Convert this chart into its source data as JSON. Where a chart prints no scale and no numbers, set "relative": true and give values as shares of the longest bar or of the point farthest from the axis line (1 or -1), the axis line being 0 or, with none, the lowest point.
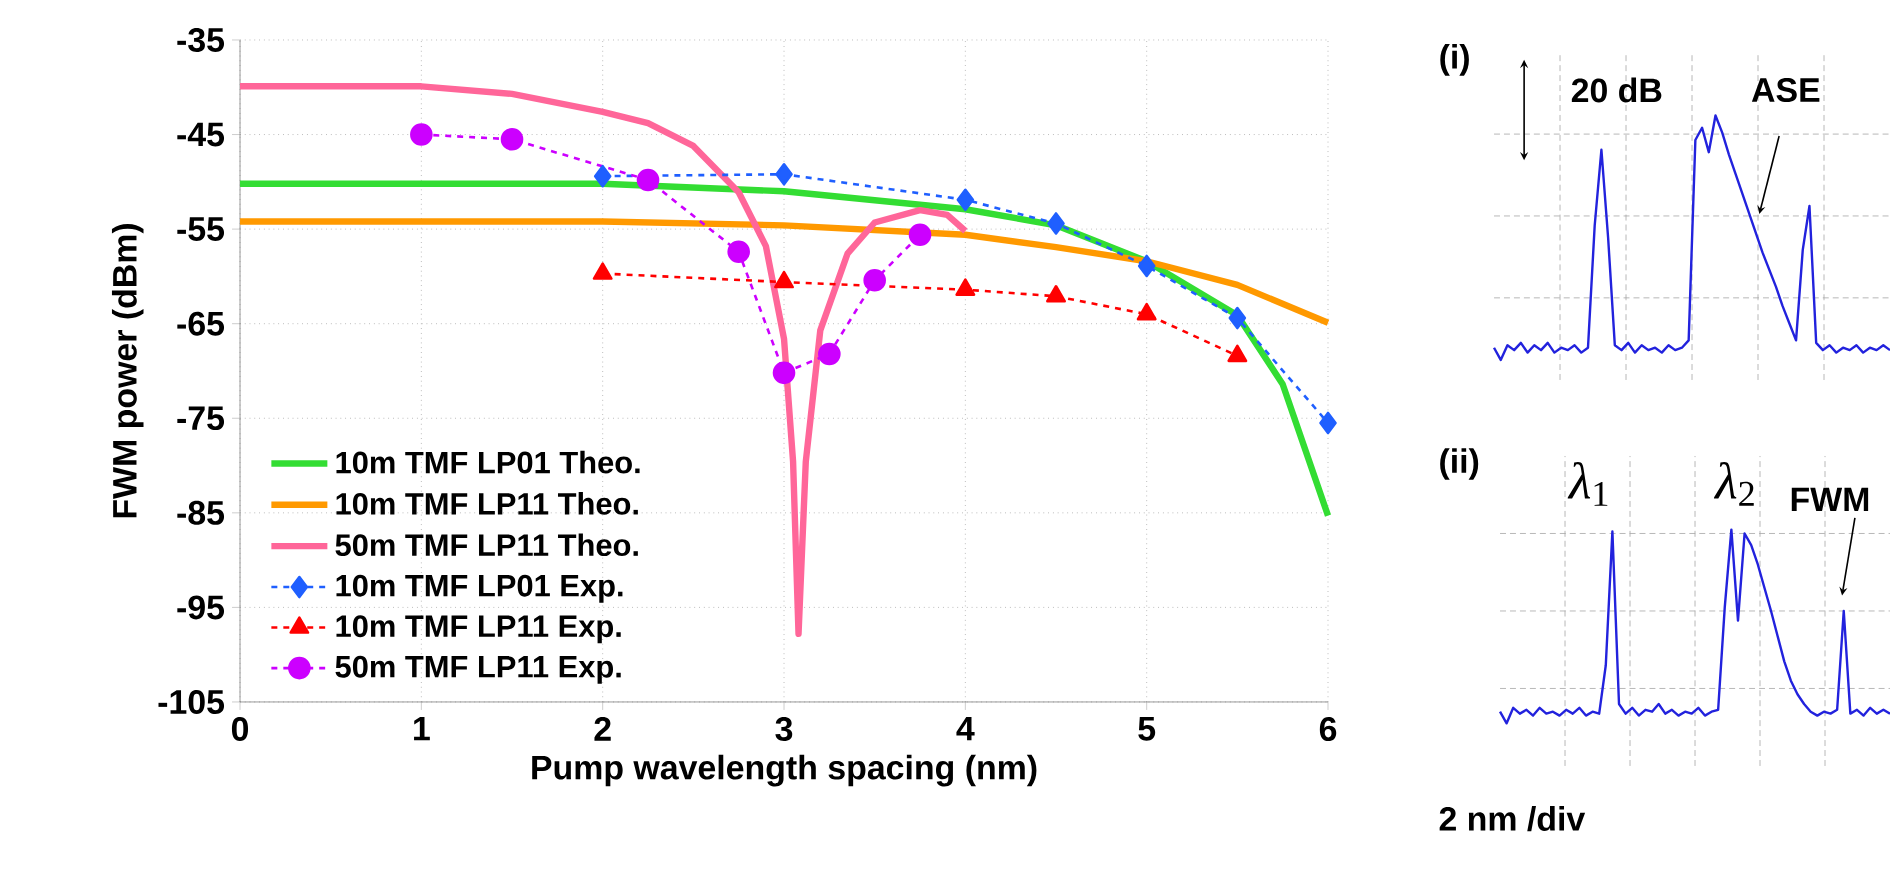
{
  "chart_data": [
    {
      "type": "line",
      "xlabel": "Pump wavelength spacing (nm)",
      "ylabel": "FWM power (dBm)",
      "xlim": [
        0,
        6
      ],
      "ylim": [
        -105,
        -35
      ],
      "xticks": [
        0,
        1,
        2,
        3,
        4,
        5,
        6
      ],
      "yticks": [
        -105,
        -95,
        -85,
        -75,
        -65,
        -55,
        -45,
        -35
      ],
      "grid": true,
      "legend": "bottom left",
      "series": [
        {
          "name": "10m TMF LP01 Theo.",
          "color": "#33dd33",
          "marker": "none",
          "line_style": "solid",
          "x": [
            0,
            1,
            2,
            3,
            4,
            4.5,
            5,
            5.5,
            5.75,
            6
          ],
          "values": [
            -50.2,
            -50.2,
            -50.2,
            -51,
            -52.9,
            -54.6,
            -58.4,
            -64.1,
            -71.4,
            -85.3
          ]
        },
        {
          "name": "10m TMF LP11 Theo.",
          "color": "#ff9900",
          "marker": "none",
          "line_style": "solid",
          "x": [
            0,
            1,
            2,
            3,
            4,
            4.5,
            5,
            5.5,
            6
          ],
          "values": [
            -54.2,
            -54.2,
            -54.2,
            -54.6,
            -55.6,
            -56.9,
            -58.4,
            -60.9,
            -64.9
          ]
        },
        {
          "name": "50m TMF LP11 Theo.",
          "color": "#ff6699",
          "marker": "none",
          "line_style": "solid",
          "x": [
            0,
            1,
            1.5,
            2,
            2.25,
            2.5,
            2.75,
            2.9,
            3.0,
            3.05,
            3.08,
            3.12,
            3.2,
            3.35,
            3.5,
            3.75,
            3.9,
            4.0
          ],
          "values": [
            -39.9,
            -39.9,
            -40.7,
            -42.6,
            -43.8,
            -46.2,
            -51.1,
            -56.8,
            -66.6,
            -79.6,
            -97.8,
            -79.6,
            -65.7,
            -57.6,
            -54.3,
            -53,
            -53.5,
            -55.2
          ]
        },
        {
          "name": "10m TMF LP01 Exp.",
          "color": "#1f5fff",
          "marker": "diamond",
          "line_style": "dashed",
          "x": [
            2,
            3,
            4,
            4.5,
            5,
            5.5,
            6
          ],
          "values": [
            -49.4,
            -49.2,
            -51.9,
            -54.4,
            -58.9,
            -64.4,
            -75.5
          ]
        },
        {
          "name": "10m TMF LP11 Exp.",
          "color": "#ff0000",
          "marker": "triangle",
          "line_style": "dashed",
          "x": [
            2,
            3,
            4,
            4.5,
            5,
            5.5
          ],
          "values": [
            -59.7,
            -60.6,
            -61.4,
            -62.1,
            -64,
            -68.4
          ]
        },
        {
          "name": "50m TMF LP11 Exp.",
          "color": "#cc00ff",
          "marker": "circle",
          "line_style": "dashed",
          "x": [
            1,
            1.5,
            2.25,
            2.75,
            3,
            3.25,
            3.5,
            3.75
          ],
          "values": [
            -45,
            -45.5,
            -49.8,
            -57.4,
            -70.2,
            -68.2,
            -60.4,
            -55.6
          ]
        }
      ]
    },
    {
      "type": "line",
      "relative": true,
      "grid": true,
      "annotations": [
        "(i)",
        "20 dB",
        "ASE"
      ],
      "categories": [
        null,
        null,
        null,
        null,
        null,
        null,
        null,
        null,
        null,
        null,
        null,
        null,
        null,
        null,
        null,
        null,
        null,
        null,
        null,
        null,
        null,
        null,
        null,
        null,
        null,
        null,
        null,
        null,
        null,
        null,
        null,
        null,
        null,
        null,
        null,
        null,
        null,
        null,
        null,
        null,
        null,
        null,
        null,
        null,
        null,
        null,
        null,
        null,
        null,
        null,
        null,
        null,
        null,
        null,
        null,
        null,
        null,
        null,
        null,
        null
      ],
      "series": [
        {
          "color": "#2222dd",
          "values": [
            0.05,
            0,
            0.06,
            0.04,
            0.07,
            0.03,
            0.06,
            0.04,
            0.07,
            0.03,
            0.05,
            0.04,
            0.06,
            0.03,
            0.05,
            0.55,
            0.86,
            0.5,
            0.06,
            0.04,
            0.07,
            0.03,
            0.06,
            0.04,
            0.05,
            0.03,
            0.06,
            0.04,
            0.05,
            0.08,
            0.9,
            0.95,
            0.85,
            1,
            0.93,
            0.84,
            0.76,
            0.68,
            0.6,
            0.52,
            0.44,
            0.37,
            0.3,
            0.22,
            0.15,
            0.08,
            0.45,
            0.63,
            0.07,
            0.04,
            0.06,
            0.03,
            0.05,
            0.04,
            0.06,
            0.03,
            0.05,
            0.04,
            0.06,
            0.04
          ]
        }
      ]
    },
    {
      "type": "line",
      "relative": true,
      "grid": true,
      "annotations": [
        "(ii)",
        "*λ*$_{1}$",
        "*λ*$_{2}$",
        "FWM",
        "2 nm /div"
      ],
      "categories": [
        null,
        null,
        null,
        null,
        null,
        null,
        null,
        null,
        null,
        null,
        null,
        null,
        null,
        null,
        null,
        null,
        null,
        null,
        null,
        null,
        null,
        null,
        null,
        null,
        null,
        null,
        null,
        null,
        null,
        null,
        null,
        null,
        null,
        null,
        null,
        null,
        null,
        null,
        null,
        null,
        null,
        null,
        null,
        null,
        null,
        null,
        null,
        null,
        null,
        null,
        null,
        null,
        null,
        null,
        null,
        null,
        null,
        null,
        null,
        null
      ],
      "series": [
        {
          "color": "#2222dd",
          "values": [
            0.06,
            0,
            0.08,
            0.05,
            0.07,
            0.04,
            0.08,
            0.05,
            0.06,
            0.04,
            0.07,
            0.05,
            0.08,
            0.04,
            0.06,
            0.05,
            0.3,
            0.99,
            0.1,
            0.05,
            0.08,
            0.04,
            0.07,
            0.06,
            0.1,
            0.05,
            0.07,
            0.04,
            0.06,
            0.05,
            0.08,
            0.04,
            0.06,
            0.07,
            0.6,
            1,
            0.53,
            0.98,
            0.92,
            0.82,
            0.7,
            0.58,
            0.45,
            0.32,
            0.22,
            0.15,
            0.1,
            0.06,
            0.04,
            0.06,
            0.05,
            0.07,
            0.58,
            0.05,
            0.07,
            0.04,
            0.08,
            0.05,
            0.07,
            0.05
          ]
        }
      ]
    }
  ]
}
